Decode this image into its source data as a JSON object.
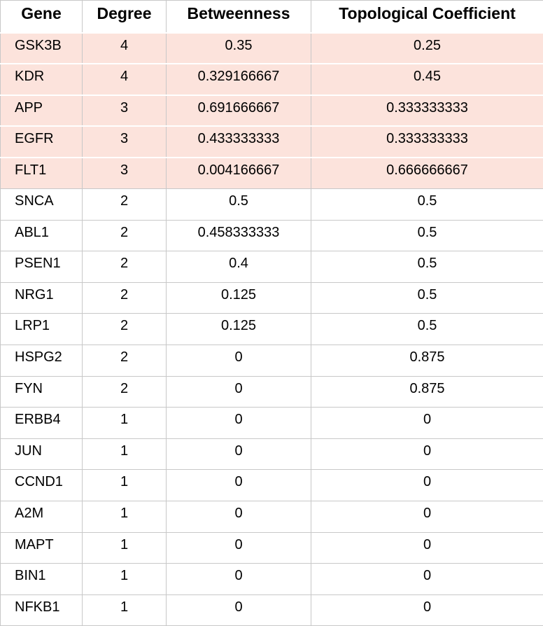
{
  "headers": [
    "Gene",
    "Degree",
    "Betweenness",
    "Topological Coefficient"
  ],
  "highlight_color": "#fce3dc",
  "rows": [
    {
      "gene": "GSK3B",
      "degree": "4",
      "betweenness": "0.35",
      "topological_coefficient": "0.25",
      "highlighted": true
    },
    {
      "gene": "KDR",
      "degree": "4",
      "betweenness": "0.329166667",
      "topological_coefficient": "0.45",
      "highlighted": true
    },
    {
      "gene": "APP",
      "degree": "3",
      "betweenness": "0.691666667",
      "topological_coefficient": "0.333333333",
      "highlighted": true
    },
    {
      "gene": "EGFR",
      "degree": "3",
      "betweenness": "0.433333333",
      "topological_coefficient": "0.333333333",
      "highlighted": true
    },
    {
      "gene": "FLT1",
      "degree": "3",
      "betweenness": "0.004166667",
      "topological_coefficient": "0.666666667",
      "highlighted": true
    },
    {
      "gene": "SNCA",
      "degree": "2",
      "betweenness": "0.5",
      "topological_coefficient": "0.5",
      "highlighted": false
    },
    {
      "gene": "ABL1",
      "degree": "2",
      "betweenness": "0.458333333",
      "topological_coefficient": "0.5",
      "highlighted": false
    },
    {
      "gene": "PSEN1",
      "degree": "2",
      "betweenness": "0.4",
      "topological_coefficient": "0.5",
      "highlighted": false
    },
    {
      "gene": "NRG1",
      "degree": "2",
      "betweenness": "0.125",
      "topological_coefficient": "0.5",
      "highlighted": false
    },
    {
      "gene": "LRP1",
      "degree": "2",
      "betweenness": "0.125",
      "topological_coefficient": "0.5",
      "highlighted": false
    },
    {
      "gene": "HSPG2",
      "degree": "2",
      "betweenness": "0",
      "topological_coefficient": "0.875",
      "highlighted": false
    },
    {
      "gene": "FYN",
      "degree": "2",
      "betweenness": "0",
      "topological_coefficient": "0.875",
      "highlighted": false
    },
    {
      "gene": "ERBB4",
      "degree": "1",
      "betweenness": "0",
      "topological_coefficient": "0",
      "highlighted": false
    },
    {
      "gene": "JUN",
      "degree": "1",
      "betweenness": "0",
      "topological_coefficient": "0",
      "highlighted": false
    },
    {
      "gene": "CCND1",
      "degree": "1",
      "betweenness": "0",
      "topological_coefficient": "0",
      "highlighted": false
    },
    {
      "gene": "A2M",
      "degree": "1",
      "betweenness": "0",
      "topological_coefficient": "0",
      "highlighted": false
    },
    {
      "gene": "MAPT",
      "degree": "1",
      "betweenness": "0",
      "topological_coefficient": "0",
      "highlighted": false
    },
    {
      "gene": "BIN1",
      "degree": "1",
      "betweenness": "0",
      "topological_coefficient": "0",
      "highlighted": false
    },
    {
      "gene": "NFKB1",
      "degree": "1",
      "betweenness": "0",
      "topological_coefficient": "0",
      "highlighted": false
    }
  ]
}
